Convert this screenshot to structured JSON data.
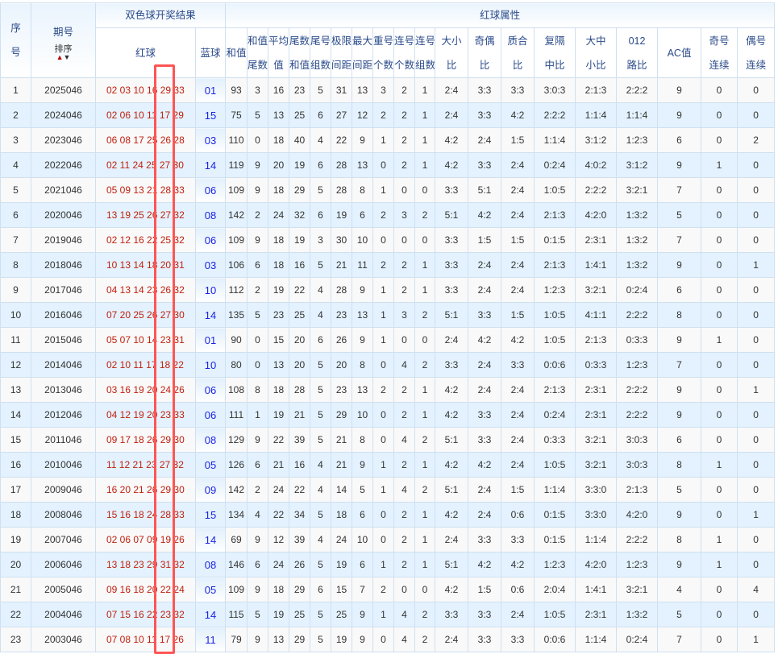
{
  "header": {
    "seq": "序号",
    "issue": "期号",
    "sort_label": "排序",
    "result_group": "双色球开奖结果",
    "red": "红球",
    "blue": "蓝球",
    "attr_group": "红球属性",
    "attrs": [
      [
        "和值"
      ],
      [
        "和值",
        "尾数"
      ],
      [
        "平均",
        "值"
      ],
      [
        "尾数",
        "和值"
      ],
      [
        "尾号",
        "组数"
      ],
      [
        "极限",
        "间距"
      ],
      [
        "最大",
        "间距"
      ],
      [
        "重号",
        "个数"
      ],
      [
        "连号",
        "个数"
      ],
      [
        "连号",
        "组数"
      ],
      [
        "大小",
        "比"
      ],
      [
        "奇偶",
        "比"
      ],
      [
        "质合",
        "比"
      ],
      [
        "复隔",
        "中比"
      ],
      [
        "大中",
        "小比"
      ],
      [
        "012",
        "路比"
      ],
      [
        "AC值"
      ],
      [
        "奇号",
        "连续"
      ],
      [
        "偶号",
        "连续"
      ]
    ]
  },
  "colors": {
    "red_ball": "#c0210f",
    "blue_ball": "#1b24e6",
    "row_alt": "#e3f2fe",
    "highlight_box": "#ff5555"
  },
  "rows": [
    [
      "1",
      "2025046",
      "02 03 10 16 29 33",
      "01",
      "93",
      "3",
      "16",
      "23",
      "5",
      "31",
      "13",
      "3",
      "2",
      "1",
      "2:4",
      "3:3",
      "3:3",
      "3:0:3",
      "2:1:3",
      "2:2:2",
      "9",
      "0",
      "0"
    ],
    [
      "2",
      "2024046",
      "02 06 10 11 17 29",
      "15",
      "75",
      "5",
      "13",
      "25",
      "6",
      "27",
      "12",
      "2",
      "2",
      "1",
      "2:4",
      "3:3",
      "4:2",
      "2:2:2",
      "1:1:4",
      "1:1:4",
      "9",
      "0",
      "0"
    ],
    [
      "3",
      "2023046",
      "06 08 17 25 26 28",
      "03",
      "110",
      "0",
      "18",
      "40",
      "4",
      "22",
      "9",
      "1",
      "2",
      "1",
      "4:2",
      "2:4",
      "1:5",
      "1:1:4",
      "3:1:2",
      "1:2:3",
      "6",
      "0",
      "2"
    ],
    [
      "4",
      "2022046",
      "02 11 24 25 27 30",
      "14",
      "119",
      "9",
      "20",
      "19",
      "6",
      "28",
      "13",
      "0",
      "2",
      "1",
      "4:2",
      "3:3",
      "2:4",
      "0:2:4",
      "4:0:2",
      "3:1:2",
      "9",
      "1",
      "0"
    ],
    [
      "5",
      "2021046",
      "05 09 13 21 28 33",
      "06",
      "109",
      "9",
      "18",
      "29",
      "5",
      "28",
      "8",
      "1",
      "0",
      "0",
      "3:3",
      "5:1",
      "2:4",
      "1:0:5",
      "2:2:2",
      "3:2:1",
      "7",
      "0",
      "0"
    ],
    [
      "6",
      "2020046",
      "13 19 25 26 27 32",
      "08",
      "142",
      "2",
      "24",
      "32",
      "6",
      "19",
      "6",
      "2",
      "3",
      "2",
      "5:1",
      "4:2",
      "2:4",
      "2:1:3",
      "4:2:0",
      "1:3:2",
      "5",
      "0",
      "0"
    ],
    [
      "7",
      "2019046",
      "02 12 16 22 25 32",
      "06",
      "109",
      "9",
      "18",
      "19",
      "3",
      "30",
      "10",
      "0",
      "0",
      "0",
      "3:3",
      "1:5",
      "1:5",
      "0:1:5",
      "2:3:1",
      "1:3:2",
      "7",
      "0",
      "0"
    ],
    [
      "8",
      "2018046",
      "10 13 14 18 20 31",
      "03",
      "106",
      "6",
      "18",
      "16",
      "5",
      "21",
      "11",
      "2",
      "2",
      "1",
      "3:3",
      "2:4",
      "2:4",
      "2:1:3",
      "1:4:1",
      "1:3:2",
      "9",
      "0",
      "1"
    ],
    [
      "9",
      "2017046",
      "04 13 14 23 26 32",
      "10",
      "112",
      "2",
      "19",
      "22",
      "4",
      "28",
      "9",
      "1",
      "2",
      "1",
      "3:3",
      "2:4",
      "2:4",
      "1:2:3",
      "3:2:1",
      "0:2:4",
      "6",
      "0",
      "0"
    ],
    [
      "10",
      "2016046",
      "07 20 25 26 27 30",
      "14",
      "135",
      "5",
      "23",
      "25",
      "4",
      "23",
      "13",
      "1",
      "3",
      "2",
      "5:1",
      "3:3",
      "1:5",
      "1:0:5",
      "4:1:1",
      "2:2:2",
      "8",
      "0",
      "0"
    ],
    [
      "11",
      "2015046",
      "05 07 10 14 23 31",
      "01",
      "90",
      "0",
      "15",
      "20",
      "6",
      "26",
      "9",
      "1",
      "0",
      "0",
      "2:4",
      "4:2",
      "4:2",
      "1:0:5",
      "2:1:3",
      "0:3:3",
      "9",
      "1",
      "0"
    ],
    [
      "12",
      "2014046",
      "02 10 11 17 18 22",
      "10",
      "80",
      "0",
      "13",
      "20",
      "5",
      "20",
      "8",
      "0",
      "4",
      "2",
      "3:3",
      "2:4",
      "3:3",
      "0:0:6",
      "0:3:3",
      "1:2:3",
      "7",
      "0",
      "0"
    ],
    [
      "13",
      "2013046",
      "03 16 19 20 24 26",
      "06",
      "108",
      "8",
      "18",
      "28",
      "5",
      "23",
      "13",
      "2",
      "2",
      "1",
      "4:2",
      "2:4",
      "2:4",
      "2:1:3",
      "2:3:1",
      "2:2:2",
      "9",
      "0",
      "1"
    ],
    [
      "14",
      "2012046",
      "04 12 19 20 23 33",
      "06",
      "111",
      "1",
      "19",
      "21",
      "5",
      "29",
      "10",
      "0",
      "2",
      "1",
      "4:2",
      "3:3",
      "2:4",
      "0:2:4",
      "2:3:1",
      "2:2:2",
      "9",
      "0",
      "0"
    ],
    [
      "15",
      "2011046",
      "09 17 18 26 29 30",
      "08",
      "129",
      "9",
      "22",
      "39",
      "5",
      "21",
      "8",
      "0",
      "4",
      "2",
      "5:1",
      "3:3",
      "2:4",
      "0:3:3",
      "3:2:1",
      "3:0:3",
      "6",
      "0",
      "0"
    ],
    [
      "16",
      "2010046",
      "11 12 21 23 27 32",
      "05",
      "126",
      "6",
      "21",
      "16",
      "4",
      "21",
      "9",
      "1",
      "2",
      "1",
      "4:2",
      "4:2",
      "2:4",
      "1:0:5",
      "3:2:1",
      "3:0:3",
      "8",
      "1",
      "0"
    ],
    [
      "17",
      "2009046",
      "16 20 21 26 29 30",
      "09",
      "142",
      "2",
      "24",
      "22",
      "4",
      "14",
      "5",
      "1",
      "4",
      "2",
      "5:1",
      "2:4",
      "1:5",
      "1:1:4",
      "3:3:0",
      "2:1:3",
      "5",
      "0",
      "0"
    ],
    [
      "18",
      "2008046",
      "15 16 18 24 28 33",
      "15",
      "134",
      "4",
      "22",
      "34",
      "5",
      "18",
      "6",
      "0",
      "2",
      "1",
      "4:2",
      "2:4",
      "0:6",
      "0:1:5",
      "3:3:0",
      "4:2:0",
      "9",
      "0",
      "1"
    ],
    [
      "19",
      "2007046",
      "02 06 07 09 19 26",
      "14",
      "69",
      "9",
      "12",
      "39",
      "4",
      "24",
      "10",
      "0",
      "2",
      "1",
      "2:4",
      "3:3",
      "3:3",
      "0:1:5",
      "1:1:4",
      "2:2:2",
      "8",
      "1",
      "0"
    ],
    [
      "20",
      "2006046",
      "13 18 23 29 31 32",
      "08",
      "146",
      "6",
      "24",
      "26",
      "5",
      "19",
      "6",
      "1",
      "2",
      "1",
      "5:1",
      "4:2",
      "4:2",
      "1:2:3",
      "4:2:0",
      "1:2:3",
      "9",
      "1",
      "0"
    ],
    [
      "21",
      "2005046",
      "09 16 18 20 22 24",
      "05",
      "109",
      "9",
      "18",
      "29",
      "6",
      "15",
      "7",
      "2",
      "0",
      "0",
      "4:2",
      "1:5",
      "0:6",
      "2:0:4",
      "1:4:1",
      "3:2:1",
      "4",
      "0",
      "4"
    ],
    [
      "22",
      "2004046",
      "07 15 16 22 23 32",
      "14",
      "115",
      "5",
      "19",
      "25",
      "5",
      "25",
      "9",
      "1",
      "4",
      "2",
      "3:3",
      "3:3",
      "2:4",
      "1:0:5",
      "2:3:1",
      "1:3:2",
      "5",
      "0",
      "0"
    ],
    [
      "23",
      "2003046",
      "07 08 10 11 17 26",
      "11",
      "79",
      "9",
      "13",
      "29",
      "5",
      "19",
      "9",
      "0",
      "4",
      "2",
      "2:4",
      "3:3",
      "3:3",
      "0:0:6",
      "1:1:4",
      "0:2:4",
      "7",
      "0",
      "1"
    ]
  ]
}
